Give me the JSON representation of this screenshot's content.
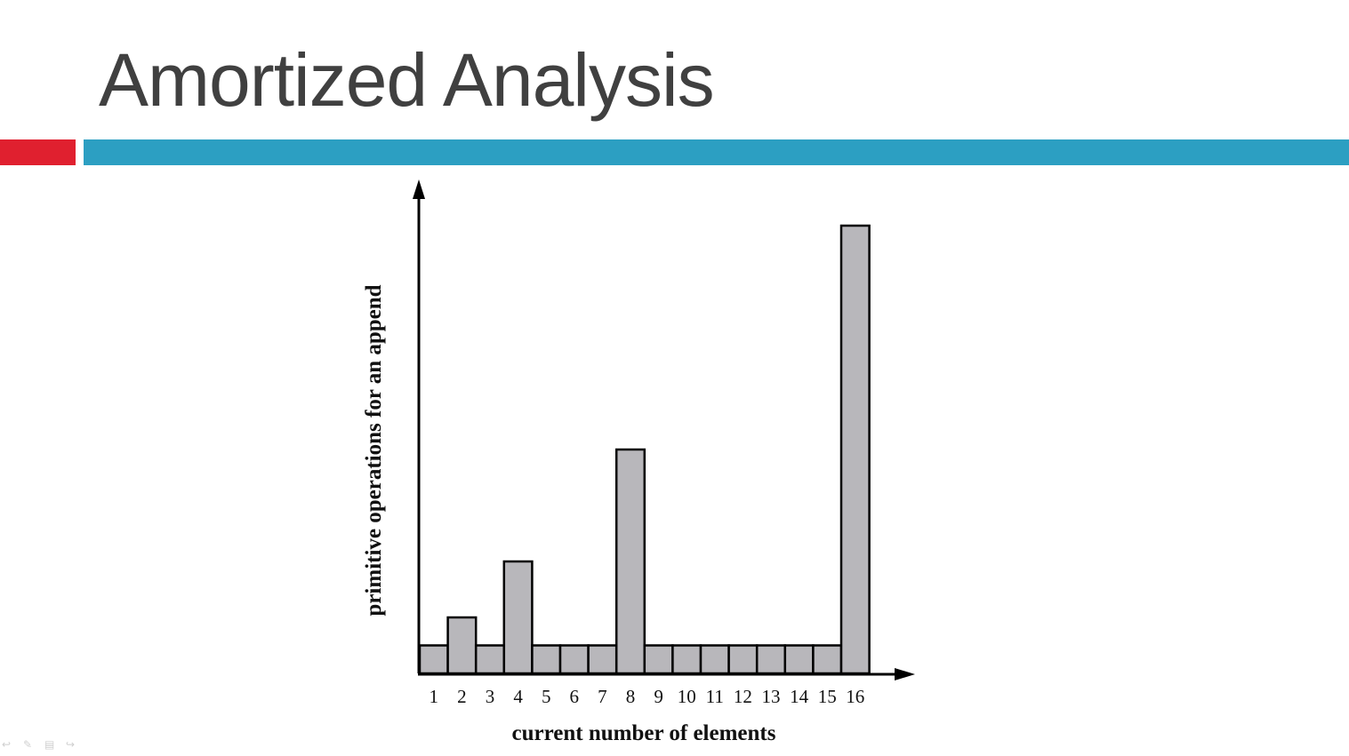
{
  "slide": {
    "title": "Amortized Analysis"
  },
  "colors": {
    "title_text": "#404040",
    "accent_red": "#E0202F",
    "accent_blue": "#2C9FC2",
    "bar_fill": "#B8B7BB",
    "bar_stroke": "#000000",
    "axis": "#000000"
  },
  "chart_data": {
    "type": "bar",
    "categories": [
      "1",
      "2",
      "3",
      "4",
      "5",
      "6",
      "7",
      "8",
      "9",
      "10",
      "11",
      "12",
      "13",
      "14",
      "15",
      "16"
    ],
    "values": [
      1,
      2,
      1,
      4,
      1,
      1,
      1,
      8,
      1,
      1,
      1,
      1,
      1,
      1,
      1,
      16
    ],
    "xlabel": "current number of elements",
    "ylabel": "primitive operations for an append",
    "ylim": [
      0,
      16
    ],
    "grid": false,
    "legend": "none",
    "y_ticks_shown": false
  },
  "controls": {
    "icons": [
      "back-icon",
      "pen-icon",
      "menu-icon",
      "forward-icon"
    ]
  }
}
